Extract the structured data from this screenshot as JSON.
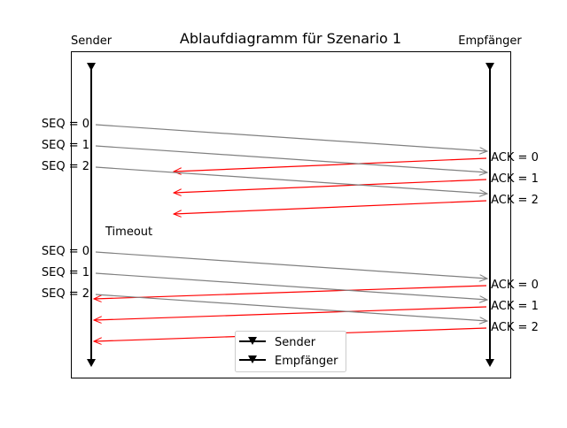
{
  "title": "Ablaufdiagramm für Szenario 1",
  "actors": {
    "sender": "Sender",
    "receiver": "Empfänger"
  },
  "timeout_label": "Timeout",
  "legend": [
    {
      "label": "Sender"
    },
    {
      "label": "Empfänger"
    }
  ],
  "colors": {
    "data": "#808080",
    "ack": "#ff0000",
    "axis": "#000000"
  },
  "rounds": [
    {
      "seq": [
        "SEQ = 0",
        "SEQ = 1",
        "SEQ = 2"
      ],
      "ack": [
        "ACK = 0",
        "ACK = 1",
        "ACK = 2"
      ],
      "ack_arrives_at_sender": false
    },
    {
      "seq": [
        "SEQ = 0",
        "SEQ = 1",
        "SEQ = 2"
      ],
      "ack": [
        "ACK = 0",
        "ACK = 1",
        "ACK = 2"
      ],
      "ack_arrives_at_sender": true
    }
  ]
}
